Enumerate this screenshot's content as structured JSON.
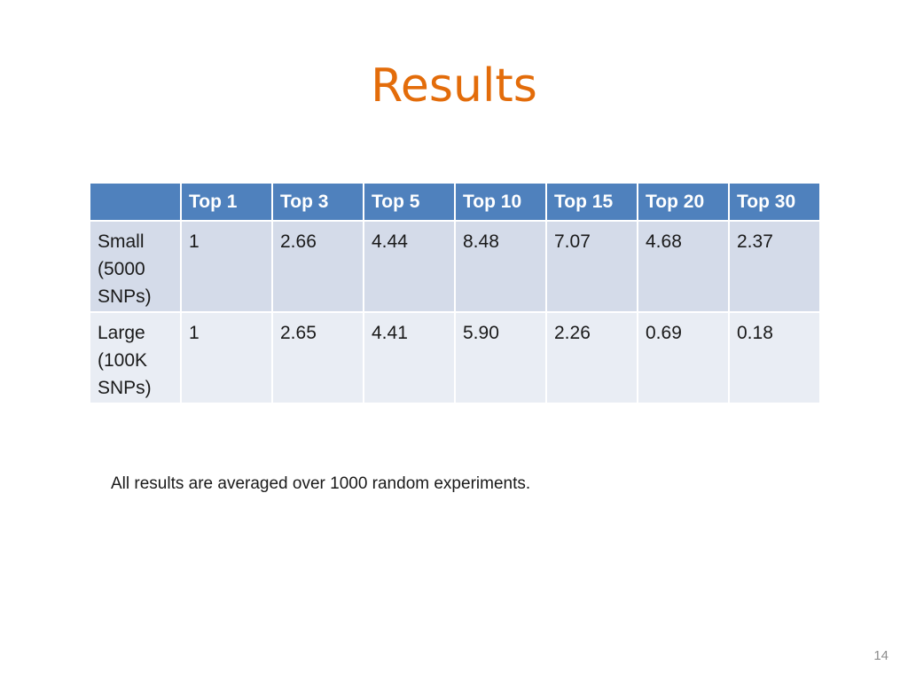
{
  "slide": {
    "title": "Results",
    "footnote": "All results are averaged over 1000 random experiments.",
    "page_number": "14"
  },
  "table": {
    "headers": [
      "",
      "Top 1",
      "Top 3",
      "Top 5",
      "Top 10",
      "Top 15",
      "Top 20",
      "Top 30"
    ],
    "rows": [
      {
        "label": "Small (5000 SNPs)",
        "values": [
          "1",
          "2.66",
          "4.44",
          "8.48",
          "7.07",
          "4.68",
          "2.37"
        ]
      },
      {
        "label": "Large (100K SNPs)",
        "values": [
          "1",
          "2.65",
          "4.41",
          "5.90",
          "2.26",
          "0.69",
          "0.18"
        ]
      }
    ]
  },
  "colors": {
    "title": "#e36c0a",
    "header_bg": "#4f81bd",
    "row_bg": "#d4dbe9",
    "row_alt_bg": "#e9edf4"
  }
}
